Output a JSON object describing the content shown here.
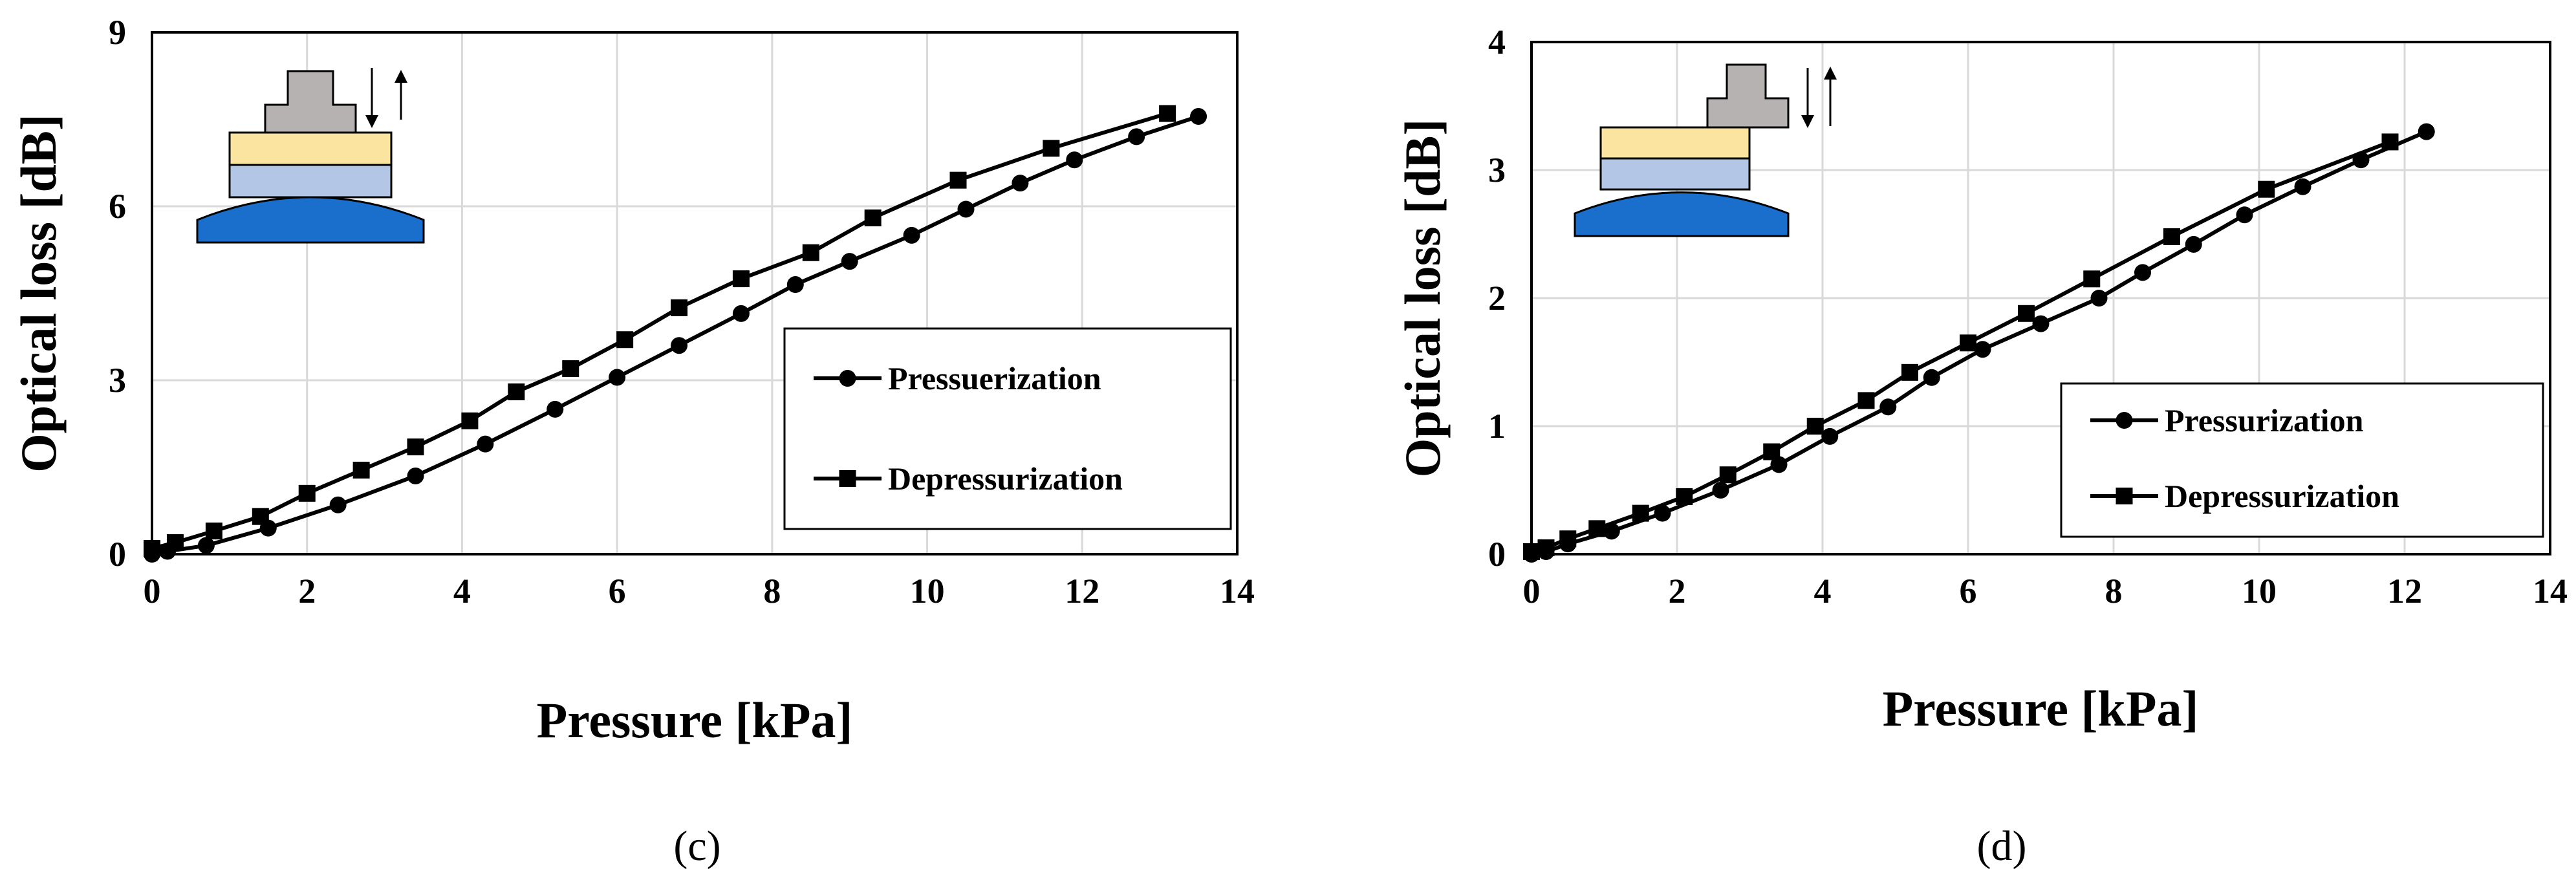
{
  "charts": [
    {
      "id": "c",
      "panel_label": "(c)",
      "colors": {
        "yellow": "#fbe4a0",
        "light_blue": "#b4c6e6",
        "blue": "#1a6ecc",
        "gray": "#b6b2b2"
      }
    },
    {
      "id": "d",
      "panel_label": "(d)",
      "colors": {
        "yellow": "#fbe4a0",
        "light_blue": "#b4c6e6",
        "blue": "#1a6ecc",
        "gray": "#b6b2b2"
      }
    }
  ],
  "chart_data": [
    {
      "type": "line",
      "title": "",
      "xlabel": "Pressure [kPa]",
      "ylabel": "Optical loss [dB]",
      "xlim": [
        0,
        14
      ],
      "ylim": [
        0,
        9
      ],
      "xticks": [
        0,
        2,
        4,
        6,
        8,
        10,
        12,
        14
      ],
      "yticks": [
        0,
        3,
        6,
        9
      ],
      "grid": true,
      "legend_position": "right",
      "series": [
        {
          "name": "Pressuerization",
          "marker": "circle",
          "x": [
            0,
            0.2,
            0.7,
            1.5,
            2.4,
            3.4,
            4.3,
            5.2,
            6.0,
            6.8,
            7.6,
            8.3,
            9.0,
            9.8,
            10.5,
            11.2,
            11.9,
            12.7,
            13.5
          ],
          "y": [
            0,
            0.05,
            0.15,
            0.45,
            0.85,
            1.35,
            1.9,
            2.5,
            3.05,
            3.6,
            4.15,
            4.65,
            5.05,
            5.5,
            5.95,
            6.4,
            6.8,
            7.2,
            7.55
          ]
        },
        {
          "name": "Depressurization",
          "marker": "square",
          "x": [
            0,
            0.3,
            0.8,
            1.4,
            2.0,
            2.7,
            3.4,
            4.1,
            4.7,
            5.4,
            6.1,
            6.8,
            7.6,
            8.5,
            9.3,
            10.4,
            11.6,
            13.1
          ],
          "y": [
            0.1,
            0.2,
            0.4,
            0.65,
            1.05,
            1.45,
            1.85,
            2.3,
            2.8,
            3.2,
            3.7,
            4.25,
            4.75,
            5.2,
            5.8,
            6.45,
            7.0,
            7.6
          ]
        }
      ]
    },
    {
      "type": "line",
      "title": "",
      "xlabel": "Pressure [kPa]",
      "ylabel": "Optical loss [dB]",
      "xlim": [
        0,
        14
      ],
      "ylim": [
        0,
        4
      ],
      "xticks": [
        0,
        2,
        4,
        6,
        8,
        10,
        12,
        14
      ],
      "yticks": [
        0,
        1,
        2,
        3,
        4
      ],
      "grid": true,
      "legend_position": "right",
      "series": [
        {
          "name": "Pressurization",
          "marker": "circle",
          "x": [
            0,
            0.2,
            0.5,
            1.1,
            1.8,
            2.6,
            3.4,
            4.1,
            4.9,
            5.5,
            6.2,
            7.0,
            7.8,
            8.4,
            9.1,
            9.8,
            10.6,
            11.4,
            12.3
          ],
          "y": [
            0,
            0.02,
            0.08,
            0.18,
            0.32,
            0.5,
            0.7,
            0.92,
            1.15,
            1.38,
            1.6,
            1.8,
            2.0,
            2.2,
            2.42,
            2.65,
            2.87,
            3.08,
            3.3
          ]
        },
        {
          "name": "Depressurization",
          "marker": "square",
          "x": [
            0,
            0.2,
            0.5,
            0.9,
            1.5,
            2.1,
            2.7,
            3.3,
            3.9,
            4.6,
            5.2,
            6.0,
            6.8,
            7.7,
            8.8,
            10.1,
            11.8
          ],
          "y": [
            0.02,
            0.05,
            0.12,
            0.2,
            0.32,
            0.45,
            0.62,
            0.8,
            1.0,
            1.2,
            1.42,
            1.65,
            1.88,
            2.15,
            2.48,
            2.85,
            3.22
          ]
        }
      ]
    }
  ]
}
